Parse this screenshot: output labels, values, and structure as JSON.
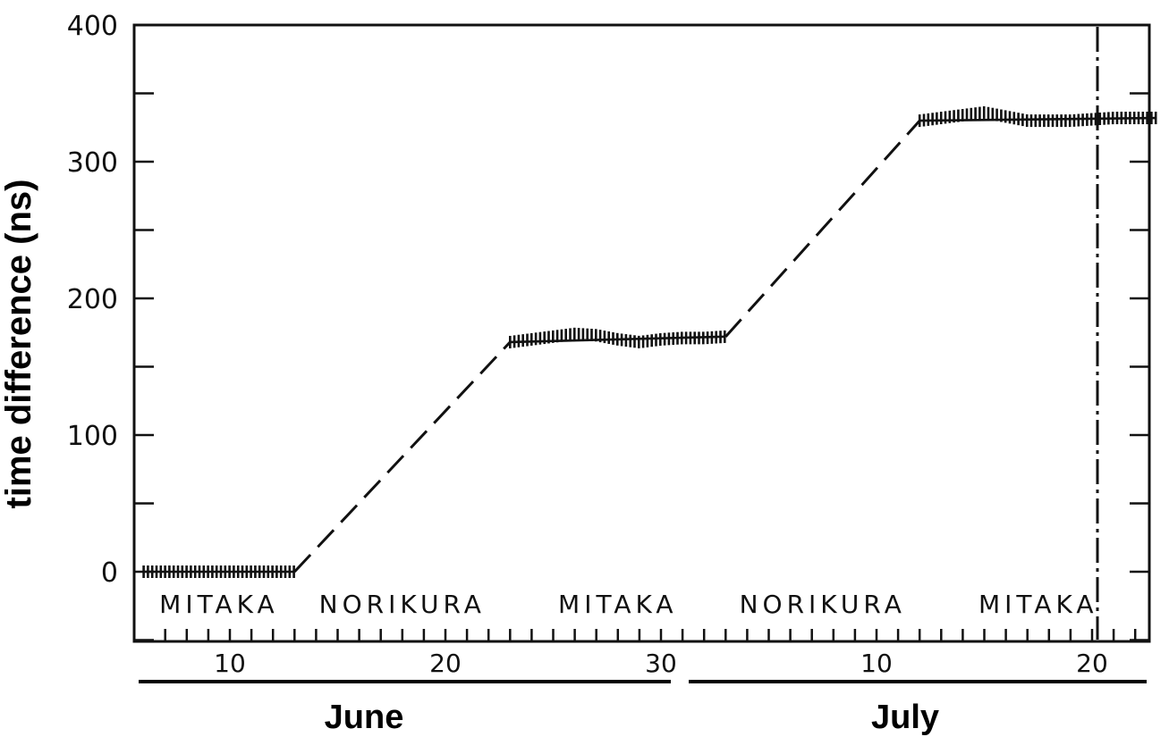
{
  "chart_data": {
    "type": "line",
    "ylabel": "time difference (ns)",
    "ylim": [
      -50,
      400
    ],
    "yticks": [
      0,
      100,
      200,
      300,
      400
    ],
    "xlim": [
      "June 6",
      "July 23"
    ],
    "x_tick_labels": [
      {
        "date": "June 10",
        "label": "10"
      },
      {
        "date": "June 20",
        "label": "20"
      },
      {
        "date": "June 30",
        "label": "30"
      },
      {
        "date": "July 10",
        "label": "10"
      },
      {
        "date": "July 20",
        "label": "20"
      }
    ],
    "months": [
      {
        "name": "June",
        "start": "June 6",
        "end": "June 30"
      },
      {
        "name": "July",
        "start": "July 1",
        "end": "July 23"
      }
    ],
    "sites": [
      {
        "name": "MITAKA",
        "start": "June 6",
        "end": "June 13"
      },
      {
        "name": "NORIKURA",
        "start": "June 13",
        "end": "June 23"
      },
      {
        "name": "MITAKA",
        "start": "June 23",
        "end": "July 3"
      },
      {
        "name": "NORIKURA",
        "start": "July 3",
        "end": "July 12"
      },
      {
        "name": "MITAKA",
        "start": "July 12",
        "end": "July 23"
      }
    ],
    "series": [
      {
        "style": "measured",
        "points": [
          [
            "June 6",
            0
          ],
          [
            "June 8",
            0
          ],
          [
            "June 10",
            0
          ],
          [
            "June 12",
            0
          ],
          [
            "June 13",
            0
          ]
        ]
      },
      {
        "style": "dashed",
        "points": [
          [
            "June 13",
            0
          ],
          [
            "June 23",
            168
          ]
        ]
      },
      {
        "style": "measured",
        "points": [
          [
            "June 23",
            168
          ],
          [
            "June 24",
            170
          ],
          [
            "June 25",
            172
          ],
          [
            "June 26",
            174
          ],
          [
            "June 27",
            173
          ],
          [
            "June 28",
            170
          ],
          [
            "June 29",
            168
          ],
          [
            "June 30",
            170
          ],
          [
            "July 1",
            171
          ],
          [
            "July 2",
            171
          ],
          [
            "July 3",
            172
          ]
        ]
      },
      {
        "style": "dashed",
        "points": [
          [
            "July 3",
            172
          ],
          [
            "July 12",
            330
          ]
        ]
      },
      {
        "style": "measured",
        "points": [
          [
            "July 12",
            330
          ],
          [
            "July 13",
            332
          ],
          [
            "July 14",
            334
          ],
          [
            "July 15",
            336
          ],
          [
            "July 16",
            333
          ],
          [
            "July 17",
            330
          ],
          [
            "July 18",
            330
          ],
          [
            "July 19",
            330
          ],
          [
            "July 20",
            331
          ],
          [
            "July 21",
            332
          ],
          [
            "July 22",
            332
          ],
          [
            "July 23",
            332
          ]
        ]
      }
    ],
    "vertical_marker": "July 20",
    "grid": false
  }
}
